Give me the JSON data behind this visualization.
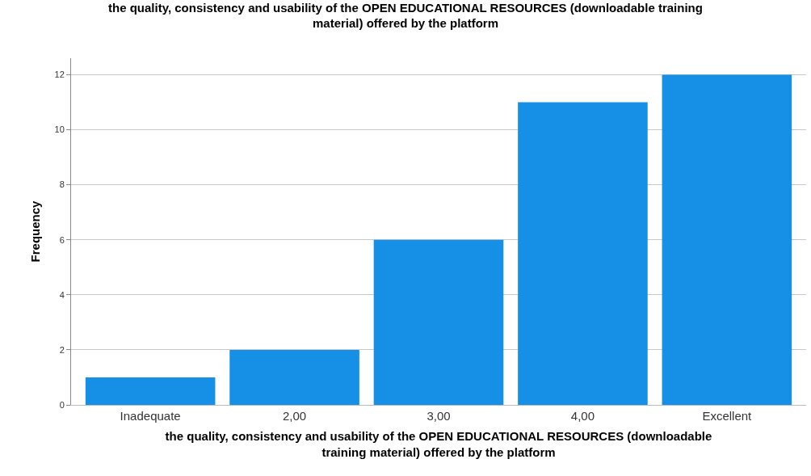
{
  "chart_data": {
    "type": "bar",
    "title": "the quality, consistency and usability of the OPEN EDUCATIONAL RESOURCES (downloadable training\nmaterial) offered by the platform",
    "xlabel": "the quality, consistency and usability of the OPEN EDUCATIONAL RESOURCES (downloadable\ntraining material) offered by the platform",
    "ylabel": "Frequency",
    "categories": [
      "Inadequate",
      "2,00",
      "3,00",
      "4,00",
      "Excellent"
    ],
    "values": [
      1,
      2,
      6,
      11,
      12
    ],
    "color": "#1690e6",
    "ylim": [
      0,
      12.6
    ],
    "yticks": [
      0,
      2,
      4,
      6,
      8,
      10,
      12
    ],
    "grid": "y"
  }
}
